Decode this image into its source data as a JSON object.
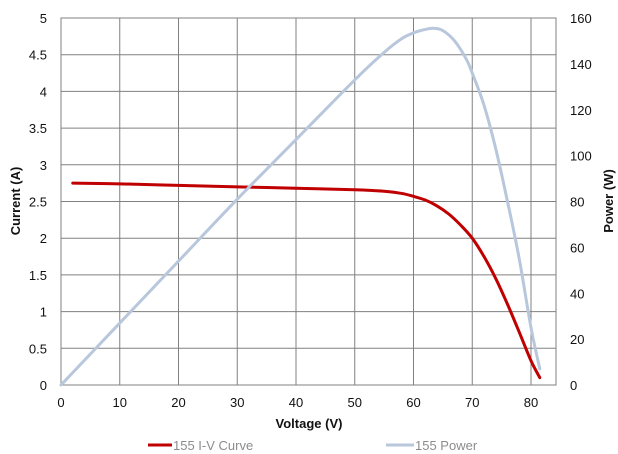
{
  "chart_data": {
    "type": "line",
    "title": "",
    "xlabel": "Voltage (V)",
    "ylabel": "Current (A)",
    "y2label": "Power (W)",
    "xlim": [
      0,
      80
    ],
    "xticks": [
      0,
      10,
      20,
      30,
      40,
      50,
      60,
      70,
      80
    ],
    "ylim": [
      0,
      5
    ],
    "yticks": [
      0,
      0.5,
      1,
      1.5,
      2,
      2.5,
      3,
      3.5,
      4,
      4.5,
      5
    ],
    "y2lim": [
      0,
      160
    ],
    "y2ticks": [
      0,
      20,
      40,
      60,
      80,
      100,
      120,
      140,
      160
    ],
    "grid": true,
    "legend_position": "bottom",
    "series": [
      {
        "name": "155 I-V Curve",
        "axis": "left",
        "color": "#c00000",
        "x": [
          2,
          10,
          20,
          30,
          40,
          50,
          55,
          58,
          60,
          62,
          64,
          66,
          68,
          70,
          72,
          74,
          76,
          78,
          80,
          81.5
        ],
        "y": [
          2.75,
          2.74,
          2.72,
          2.7,
          2.68,
          2.66,
          2.64,
          2.61,
          2.57,
          2.52,
          2.44,
          2.33,
          2.18,
          2.0,
          1.75,
          1.45,
          1.1,
          0.72,
          0.33,
          0.1
        ]
      },
      {
        "name": "155 Power",
        "axis": "right",
        "color": "#b8c7dc",
        "x": [
          0,
          10,
          20,
          30,
          40,
          50,
          55,
          58,
          60,
          62,
          63.5,
          65,
          67,
          69,
          70,
          72,
          74,
          76,
          78,
          80,
          81.5
        ],
        "y": [
          0,
          27,
          54,
          81,
          107,
          133,
          145,
          151,
          153.5,
          155,
          155.5,
          154.5,
          150,
          142,
          136,
          122,
          103,
          80,
          55,
          25,
          7
        ]
      }
    ]
  }
}
